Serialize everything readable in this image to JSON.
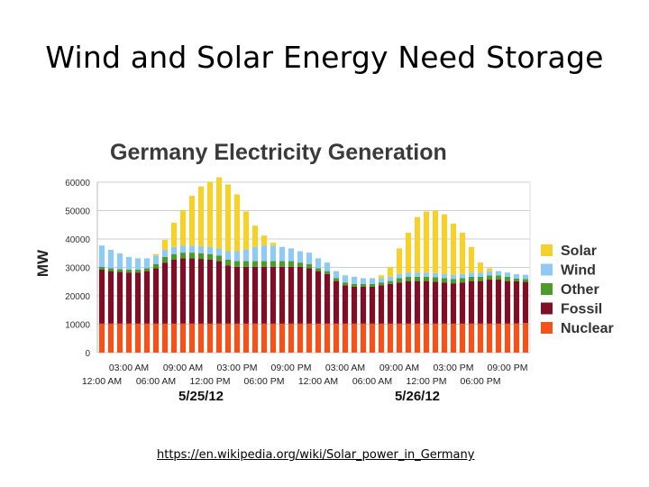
{
  "slide": {
    "title": "Wind and Solar Energy Need Storage",
    "source_link": "https://en.wikipedia.org/wiki/Solar_power_in_Germany"
  },
  "chart_data": {
    "type": "bar",
    "stacked": true,
    "title": "Germany Electricity Generation",
    "ylabel": "MW",
    "xlabel": "",
    "ylim": [
      0,
      60000
    ],
    "yticks": [
      0,
      10000,
      20000,
      30000,
      40000,
      50000,
      60000
    ],
    "ytick_labels": [
      "0",
      "10000",
      "20000",
      "30000",
      "40000",
      "50000",
      "60000"
    ],
    "x_tick_labels_upper": [
      "03:00 AM",
      "09:00 AM",
      "03:00 PM",
      "09:00 PM",
      "03:00 AM",
      "09:00 AM",
      "03:00 PM",
      "09:00 PM"
    ],
    "x_tick_labels_lower": [
      "12:00 AM",
      "06:00 AM",
      "12:00 PM",
      "06:00 PM",
      "12:00 AM",
      "06:00 AM",
      "12:00 PM",
      "06:00 PM"
    ],
    "date_labels": [
      "5/25/12",
      "5/26/12"
    ],
    "grid": true,
    "legend_position": "right",
    "legend": [
      "Solar",
      "Wind",
      "Other",
      "Fossil",
      "Nuclear"
    ],
    "colors": {
      "Solar": "#f5d12e",
      "Wind": "#8ecaf2",
      "Other": "#4f9a2c",
      "Fossil": "#7d0f26",
      "Nuclear": "#f2531c"
    },
    "series": [
      {
        "name": "Nuclear",
        "values": [
          10200,
          10200,
          10200,
          10200,
          10200,
          10200,
          10200,
          10200,
          10200,
          10200,
          10200,
          10200,
          10200,
          10200,
          10200,
          10200,
          10200,
          10200,
          10200,
          10200,
          10200,
          10200,
          10200,
          10200,
          10200,
          10200,
          10200,
          10200,
          10200,
          10200,
          10200,
          10200,
          10200,
          10200,
          10200,
          10200,
          10200,
          10200,
          10200,
          10200,
          10200,
          10200,
          10200,
          10200,
          10200,
          10200,
          10300,
          10400
        ]
      },
      {
        "name": "Fossil",
        "values": [
          19000,
          18500,
          18200,
          18000,
          18000,
          18500,
          19500,
          21500,
          22500,
          23000,
          23000,
          22800,
          22500,
          22000,
          20500,
          20000,
          20000,
          20000,
          20000,
          20000,
          20000,
          20000,
          20000,
          19500,
          18500,
          17500,
          15000,
          13500,
          13000,
          13000,
          13000,
          13500,
          14000,
          14500,
          15000,
          15000,
          15000,
          14800,
          14500,
          14200,
          14500,
          15000,
          15000,
          15500,
          15500,
          15000,
          14800,
          14500
        ]
      },
      {
        "name": "Other",
        "values": [
          1000,
          1000,
          1000,
          1000,
          1000,
          1000,
          1500,
          2000,
          2000,
          2000,
          2000,
          2000,
          2000,
          2000,
          2000,
          2000,
          2000,
          2000,
          2000,
          2000,
          2000,
          2000,
          1500,
          1500,
          1000,
          1000,
          1000,
          1000,
          1000,
          1000,
          1000,
          1000,
          1000,
          1500,
          1500,
          1500,
          1500,
          1500,
          1500,
          1500,
          1500,
          1500,
          1500,
          1500,
          1500,
          1500,
          1000,
          1000
        ]
      },
      {
        "name": "Wind",
        "values": [
          7500,
          6500,
          5500,
          4500,
          4000,
          3500,
          3000,
          2500,
          2500,
          2500,
          2500,
          2500,
          2500,
          2500,
          3000,
          3500,
          4000,
          5000,
          5500,
          5500,
          5000,
          4500,
          4000,
          4000,
          3500,
          3000,
          2500,
          2500,
          2500,
          2000,
          2000,
          1500,
          1500,
          1500,
          1500,
          1500,
          1500,
          1500,
          1500,
          1500,
          1500,
          1500,
          1500,
          1500,
          1500,
          1500,
          1500,
          1500
        ]
      },
      {
        "name": "Solar",
        "values": [
          0,
          0,
          0,
          0,
          0,
          0,
          500,
          3500,
          8500,
          12500,
          17500,
          21000,
          23000,
          25000,
          23500,
          20000,
          13500,
          7500,
          3500,
          1000,
          0,
          0,
          0,
          0,
          0,
          0,
          0,
          0,
          0,
          0,
          0,
          1000,
          3500,
          9000,
          14000,
          19500,
          21500,
          22000,
          21000,
          18000,
          14500,
          9000,
          3500,
          1000,
          0,
          0,
          0,
          0
        ]
      }
    ]
  }
}
